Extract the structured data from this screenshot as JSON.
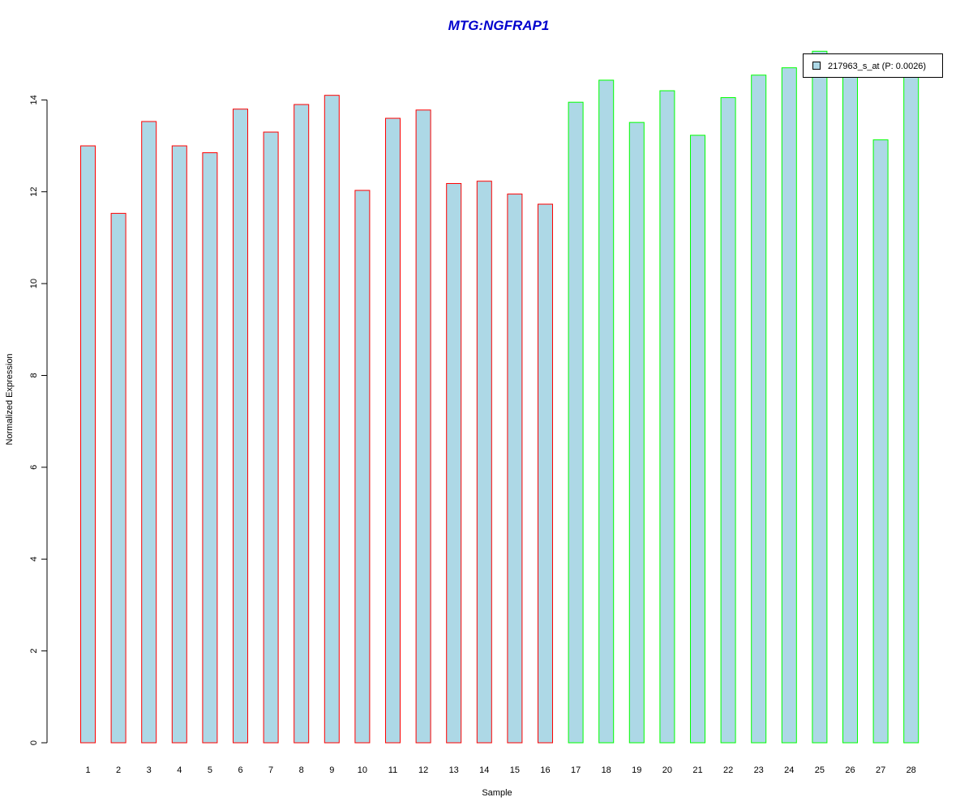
{
  "chart_data": {
    "type": "bar",
    "title": "MTG:NGFRAP1",
    "xlabel": "Sample",
    "ylabel": "Normalized Expression",
    "categories": [
      "1",
      "2",
      "3",
      "4",
      "5",
      "6",
      "7",
      "8",
      "9",
      "10",
      "11",
      "12",
      "13",
      "14",
      "15",
      "16",
      "17",
      "18",
      "19",
      "20",
      "21",
      "22",
      "23",
      "24",
      "25",
      "26",
      "27",
      "28"
    ],
    "values": [
      13.0,
      11.53,
      13.53,
      13.0,
      12.85,
      13.8,
      13.3,
      13.9,
      14.1,
      12.03,
      13.6,
      13.78,
      12.18,
      12.23,
      11.95,
      11.73,
      13.95,
      14.43,
      13.51,
      14.2,
      13.23,
      14.05,
      14.54,
      14.7,
      15.06,
      14.6,
      13.13,
      14.7
    ],
    "groups": [
      1,
      1,
      1,
      1,
      1,
      1,
      1,
      1,
      1,
      1,
      1,
      1,
      1,
      1,
      1,
      1,
      2,
      2,
      2,
      2,
      2,
      2,
      2,
      2,
      2,
      2,
      2,
      2
    ],
    "yticks": [
      0,
      2,
      4,
      6,
      8,
      10,
      12,
      14
    ],
    "ylim": [
      0,
      15.1
    ],
    "legend": {
      "entries": [
        {
          "label": "217963_s_at (P: 0.0026)",
          "color": "#add8e6"
        }
      ],
      "placement": "top-right"
    },
    "colors": {
      "title": "#0000cd",
      "bar_fill": "#add8e6",
      "group1_border": "#ff0000",
      "group2_border": "#00ff00"
    },
    "grid": false
  }
}
